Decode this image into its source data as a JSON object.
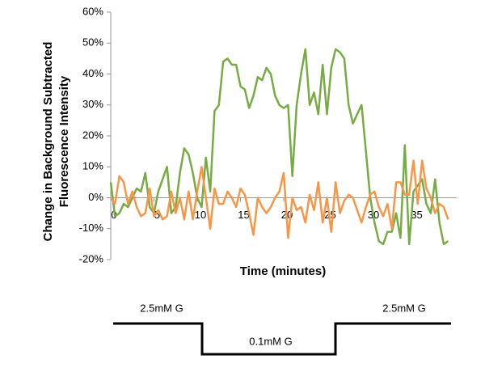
{
  "chart_data": {
    "type": "line",
    "ylabel": [
      "Change in Background Subtracted",
      "Fluorescence Intensity"
    ],
    "xlabel": "Time (minutes)",
    "x": [
      0,
      0.5,
      1,
      1.5,
      2,
      2.5,
      3,
      3.5,
      4,
      4.5,
      5,
      5.5,
      6,
      6.5,
      7,
      7.5,
      8,
      8.5,
      9,
      9.5,
      10,
      10.5,
      11,
      11.5,
      12,
      12.5,
      13,
      13.5,
      14,
      14.5,
      15,
      15.5,
      16,
      16.5,
      17,
      17.5,
      18,
      18.5,
      19,
      19.5,
      20,
      20.5,
      21,
      21.5,
      22,
      22.5,
      23,
      23.5,
      24,
      24.5,
      25,
      25.5,
      26,
      26.5,
      27,
      27.5,
      28,
      28.5,
      29,
      29.5,
      30,
      30.5,
      31,
      31.5,
      32,
      32.5,
      33,
      33.5,
      34,
      34.5,
      35,
      35.5,
      36,
      36.5,
      37,
      37.5,
      38,
      38.5,
      39
    ],
    "series": [
      {
        "color": "#77ab43",
        "values": [
          5,
          -6,
          -5,
          -2,
          -3,
          0,
          3,
          2,
          8,
          -3,
          -5,
          2,
          6,
          10,
          -5,
          -3,
          8,
          16,
          14,
          8,
          0,
          -3,
          13,
          2,
          28,
          30,
          44,
          45,
          43,
          43,
          36,
          35,
          29,
          33,
          39,
          38,
          42,
          40,
          33,
          30,
          29,
          30,
          7,
          30,
          40,
          48,
          30,
          34,
          27,
          43,
          27,
          42,
          48,
          47,
          45,
          30,
          24,
          27,
          30,
          15,
          0,
          -8,
          -14,
          -15,
          -11,
          -11,
          -5,
          -13,
          17,
          -15,
          2,
          4,
          6,
          -2,
          -5,
          6,
          -8,
          -15,
          -14
        ]
      },
      {
        "color": "#f79646",
        "values": [
          0,
          -2,
          7,
          5,
          -2,
          2,
          -3,
          -6,
          -5,
          3,
          -6,
          -4,
          -7,
          -6,
          2,
          -5,
          0,
          -7,
          2,
          -7,
          2,
          10,
          0,
          -10,
          3,
          -2,
          -2,
          2,
          0,
          -3,
          3,
          1,
          -5,
          -12,
          0,
          -3,
          -5,
          -3,
          0,
          2,
          8,
          -13,
          0,
          -4,
          -3,
          -8,
          1,
          -4,
          5,
          -8,
          0,
          -11,
          5,
          -5,
          -1,
          1,
          0,
          -4,
          -8,
          -3,
          1,
          2,
          -3,
          -6,
          -2,
          -10,
          5,
          5,
          1,
          1,
          12,
          -2,
          12,
          3,
          0,
          -5,
          -2,
          -3,
          -7
        ]
      }
    ],
    "xlim": [
      0,
      40
    ],
    "xticks": [
      0,
      5,
      10,
      15,
      20,
      25,
      30,
      35
    ],
    "ylim": [
      -20,
      60
    ],
    "yticks": [
      {
        "value": -20,
        "label": "-20%"
      },
      {
        "value": -10,
        "label": "-10%"
      },
      {
        "value": 0,
        "label": "0%"
      },
      {
        "value": 10,
        "label": "10%"
      },
      {
        "value": 20,
        "label": "20%"
      },
      {
        "value": 30,
        "label": "30%"
      },
      {
        "value": 40,
        "label": "40%"
      },
      {
        "value": 50,
        "label": "50%"
      },
      {
        "value": 60,
        "label": "60%"
      }
    ],
    "stimulus": [
      "2.5mM G",
      "0.1mM G",
      "2.5mM G"
    ]
  }
}
